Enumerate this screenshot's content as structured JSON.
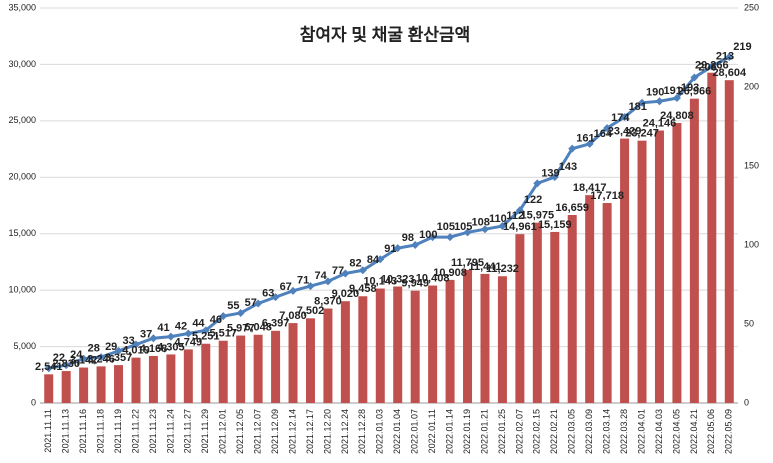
{
  "chart_data": {
    "type": "bar-line",
    "title": "참여자 및 채굴 환산금액",
    "categories": [
      "2021.11.11",
      "2021.11.13",
      "2021.11.16",
      "2021.11.18",
      "2021.11.19",
      "2021.11.22",
      "2021.11.23",
      "2021.11.24",
      "2021.11.27",
      "2021.11.29",
      "2021.12.01",
      "2021.12.05",
      "2021.12.07",
      "2021.12.09",
      "2021.12.14",
      "2021.12.17",
      "2021.12.20",
      "2021.12.24",
      "2021.12.28",
      "2022.01.03",
      "2022.01.04",
      "2022.01.07",
      "2022.01.11",
      "2022.01.14",
      "2022.01.19",
      "2022.01.21",
      "2022.01.25",
      "2022.02.07",
      "2022.02.15",
      "2022.02.21",
      "2022.03.05",
      "2022.03.09",
      "2022.03.14",
      "2022.03.28",
      "2022.04.01",
      "2022.04.03",
      "2022.04.05",
      "2022.04.21",
      "2022.05.06",
      "2022.05.09"
    ],
    "series": [
      {
        "type": "bar",
        "color": "#c0504d",
        "values": [
          2541,
          2830,
          3142,
          3246,
          3357,
          4019,
          4168,
          4305,
          4749,
          5251,
          5517,
          5977,
          6048,
          6397,
          7080,
          7502,
          8370,
          9020,
          9458,
          10143,
          10323,
          9949,
          10408,
          10908,
          11795,
          11441,
          11232,
          14961,
          15975,
          15159,
          16659,
          18417,
          17718,
          23429,
          23247,
          24146,
          24808,
          26966,
          29266,
          28604
        ],
        "value_labels": [
          "2,541",
          "2,830",
          "3,142",
          "3,246",
          "3,357",
          "4,019",
          "4,168",
          "4,305",
          "4,749",
          "5,251",
          "5,517",
          "5,977",
          "6,048",
          "6,397",
          "7,080",
          "7,502",
          "8,370",
          "9,020",
          "9,458",
          "10,143",
          "10,323",
          "9,949",
          "10,408",
          "10,908",
          "11,795",
          "11,441",
          "11,232",
          "14,961",
          "15,975",
          "15,159",
          "16,659",
          "18,417",
          "17,718",
          "23,429",
          "23,247",
          "24,146",
          "24,808",
          "26,966",
          "29,266",
          "28,604"
        ]
      },
      {
        "type": "line",
        "axis": "y2",
        "color": "#4f81bd",
        "values": [
          22,
          24,
          28,
          29,
          33,
          37,
          41,
          42,
          44,
          46,
          55,
          57,
          63,
          67,
          71,
          74,
          77,
          82,
          84,
          91,
          98,
          100,
          105,
          105,
          108,
          110,
          112,
          122,
          139,
          143,
          161,
          164,
          174,
          181,
          190,
          191,
          193,
          206,
          213,
          219
        ]
      }
    ],
    "ylim": [
      0,
      35000
    ],
    "yticks": [
      {
        "value": 0,
        "label": "0"
      },
      {
        "value": 5000,
        "label": "5,000"
      },
      {
        "value": 10000,
        "label": "10,000"
      },
      {
        "value": 15000,
        "label": "15,000"
      },
      {
        "value": 20000,
        "label": "20,000"
      },
      {
        "value": 25000,
        "label": "25,000"
      },
      {
        "value": 30000,
        "label": "30,000"
      },
      {
        "value": 35000,
        "label": "35,000"
      }
    ],
    "y2lim": [
      0,
      250
    ],
    "y2ticks": [
      0,
      50,
      100,
      150,
      200,
      250
    ],
    "grid": true
  }
}
